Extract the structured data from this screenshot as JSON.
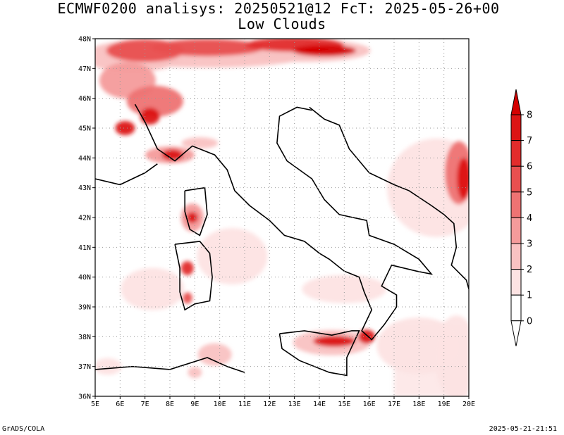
{
  "header": {
    "line1": "ECMWF0200 analisys: 20250521@12 FcT: 2025-05-26+00",
    "line2": "Low Clouds"
  },
  "footer": {
    "credit": "GrADS/COLA",
    "timestamp": "2025-05-21-21:51"
  },
  "map": {
    "lon_range": [
      5,
      20
    ],
    "lat_range": [
      36,
      48
    ],
    "grid": "dotted",
    "x_ticks": [
      "5E",
      "6E",
      "7E",
      "8E",
      "9E",
      "10E",
      "11E",
      "12E",
      "13E",
      "14E",
      "15E",
      "16E",
      "17E",
      "18E",
      "19E",
      "20E"
    ],
    "y_ticks": [
      "36N",
      "37N",
      "38N",
      "39N",
      "40N",
      "41N",
      "42N",
      "43N",
      "44N",
      "45N",
      "46N",
      "47N",
      "48N"
    ]
  },
  "colorbar": {
    "levels": [
      "0",
      "1",
      "2",
      "3",
      "4",
      "5",
      "6",
      "7",
      "8"
    ],
    "colors": [
      "#ffffff",
      "#fde3e3",
      "#f9c2c2",
      "#f49b9b",
      "#ee7373",
      "#e84f4f",
      "#e22c2c",
      "#dc1414",
      "#d40000"
    ]
  }
}
